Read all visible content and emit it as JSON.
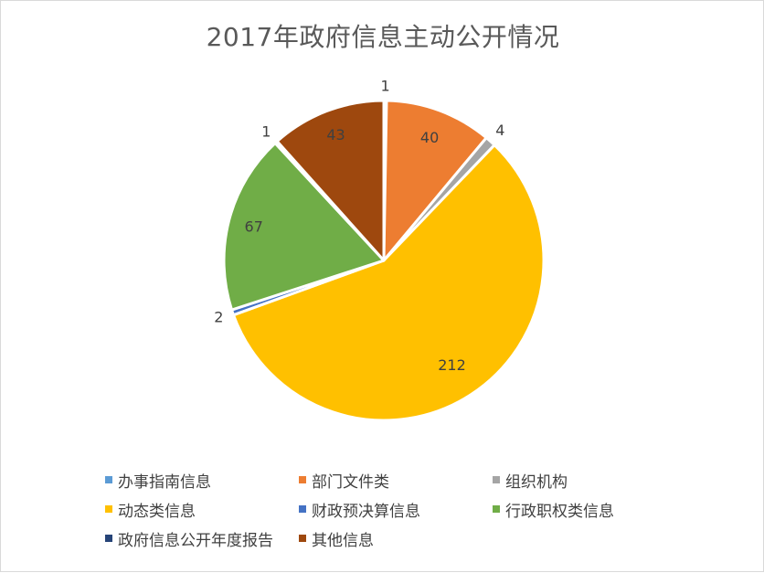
{
  "chart_data": {
    "type": "pie",
    "title": "2017年政府信息主动公开情况",
    "categories": [
      "办事指南信息",
      "部门文件类",
      "组织机构",
      "动态类信息",
      "财政预决算信息",
      "行政职权类信息",
      "政府信息公开年度报告",
      "其他信息"
    ],
    "values": [
      1,
      40,
      4,
      212,
      2,
      67,
      1,
      43
    ],
    "colors": [
      "#5B9BD5",
      "#ED7D31",
      "#A5A5A5",
      "#FFC000",
      "#4472C4",
      "#70AD47",
      "#264478",
      "#9E480E"
    ],
    "data_labels": [
      "1",
      "40",
      "4",
      "212",
      "2",
      "67",
      "1",
      "43"
    ],
    "legend_position": "bottom"
  }
}
